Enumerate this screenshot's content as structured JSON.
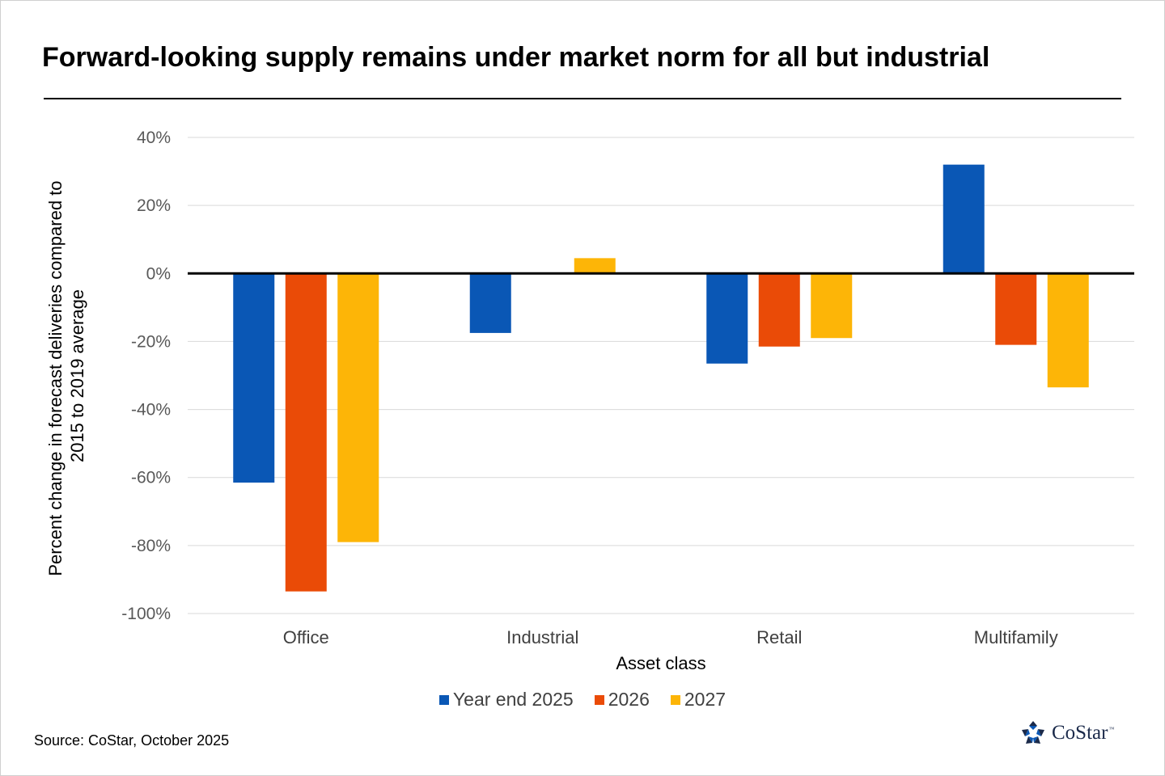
{
  "title": "Forward-looking supply remains under market norm for all but industrial",
  "source": "Source: CoStar, October 2025",
  "logo": {
    "text": "CoStar",
    "tm": "™",
    "icon": "costar-star-icon"
  },
  "colors": {
    "axis": "#000000",
    "grid": "#d9d9d9"
  },
  "chart_data": {
    "type": "bar",
    "categories": [
      "Office",
      "Industrial",
      "Retail",
      "Multifamily"
    ],
    "series": [
      {
        "name": "Year end 2025",
        "color": "#0A57B5",
        "values": [
          -61.5,
          -17.5,
          -26.5,
          32
        ]
      },
      {
        "name": "2026",
        "color": "#EA4B07",
        "values": [
          -93.5,
          null,
          -21.5,
          -21
        ]
      },
      {
        "name": "2027",
        "color": "#FDB507",
        "values": [
          -79,
          4.5,
          -19,
          -33.5
        ]
      }
    ],
    "xlabel": "Asset class",
    "ylabel": "Percent change in forecast deliveries compared to 2015 to 2019 average",
    "ylabel_lines": [
      "Percent change in forecast deliveries compared to",
      "2015 to 2019 average"
    ],
    "ylim": [
      -100,
      40
    ],
    "yticks": [
      40,
      20,
      0,
      -20,
      -40,
      -60,
      -80,
      -100
    ],
    "ytick_labels": [
      "40%",
      "20%",
      "0%",
      "-20%",
      "-40%",
      "-60%",
      "-80%",
      "-100%"
    ],
    "grid": true,
    "legend_position": "bottom"
  }
}
